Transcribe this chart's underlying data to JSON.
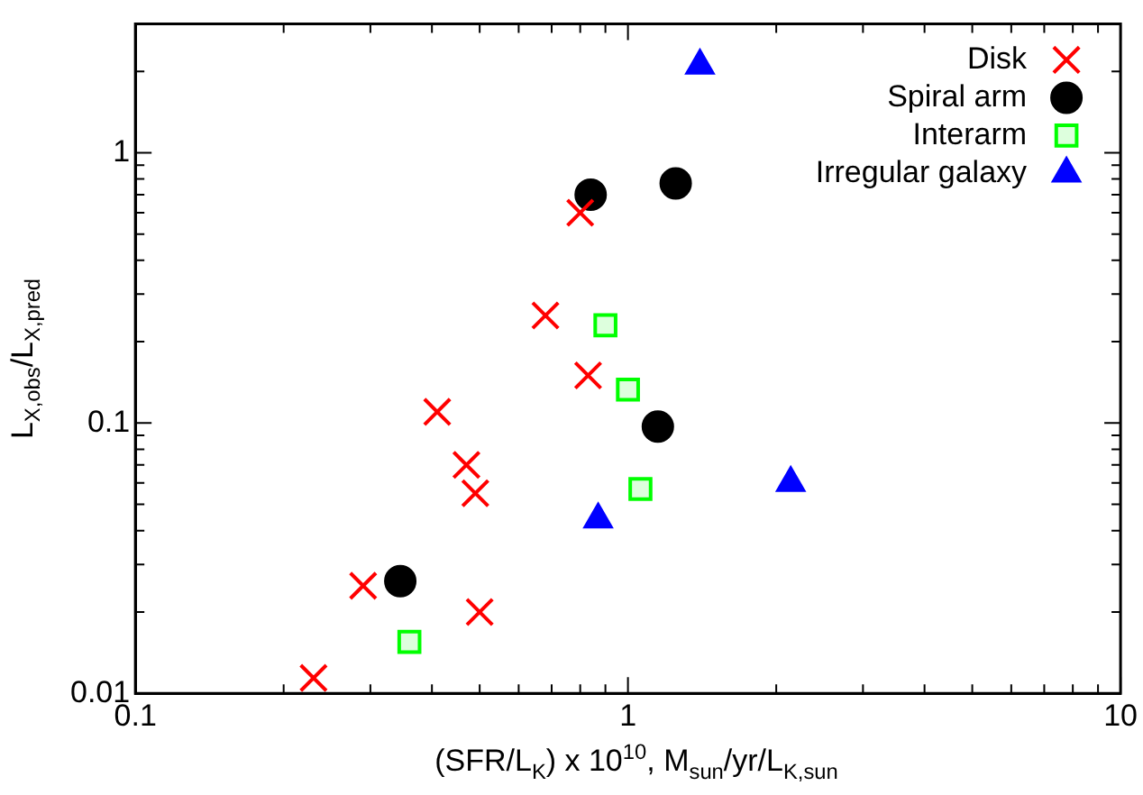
{
  "chart_data": {
    "type": "scatter",
    "xlabel": "(SFR/L$_{K}$) x 10$^{10}$, M$_{sun}$/yr/L$_{K,sun}$",
    "ylabel": "L$_{X,obs}$/L$_{X,pred}$",
    "log": "xy",
    "grid": false,
    "legend": "top right",
    "xlim": [
      0.1,
      10
    ],
    "ylim": [
      0.01,
      3
    ],
    "xticks": [
      0.1,
      {
        "value": 0.2,
        "label": null
      },
      {
        "value": 0.3,
        "label": null
      },
      {
        "value": 0.4,
        "label": null
      },
      {
        "value": 0.5,
        "label": null
      },
      {
        "value": 0.6,
        "label": null
      },
      {
        "value": 0.7,
        "label": null
      },
      {
        "value": 0.8,
        "label": null
      },
      {
        "value": 0.9,
        "label": null
      },
      1,
      {
        "value": 2,
        "label": null
      },
      {
        "value": 3,
        "label": null
      },
      {
        "value": 4,
        "label": null
      },
      {
        "value": 5,
        "label": null
      },
      {
        "value": 6,
        "label": null
      },
      {
        "value": 7,
        "label": null
      },
      {
        "value": 8,
        "label": null
      },
      {
        "value": 9,
        "label": null
      },
      10
    ],
    "yticks": [
      0.01,
      {
        "value": 0.02,
        "label": null
      },
      {
        "value": 0.03,
        "label": null
      },
      {
        "value": 0.04,
        "label": null
      },
      {
        "value": 0.05,
        "label": null
      },
      {
        "value": 0.06,
        "label": null
      },
      {
        "value": 0.07,
        "label": null
      },
      {
        "value": 0.08,
        "label": null
      },
      {
        "value": 0.09,
        "label": null
      },
      0.1,
      {
        "value": 0.2,
        "label": null
      },
      {
        "value": 0.3,
        "label": null
      },
      {
        "value": 0.4,
        "label": null
      },
      {
        "value": 0.5,
        "label": null
      },
      {
        "value": 0.6,
        "label": null
      },
      {
        "value": 0.7,
        "label": null
      },
      {
        "value": 0.8,
        "label": null
      },
      {
        "value": 0.9,
        "label": null
      },
      1,
      {
        "value": 2,
        "label": null
      }
    ],
    "series": [
      {
        "name": "Disk",
        "color": "#ff0000",
        "marker": "cross",
        "x": [
          0.8,
          0.68,
          0.83,
          0.41,
          0.47,
          0.49,
          0.29,
          0.5,
          0.23
        ],
        "values": [
          0.6,
          0.25,
          0.15,
          0.11,
          0.07,
          0.055,
          0.025,
          0.02,
          0.0114
        ]
      },
      {
        "name": "Spiral arm",
        "color": "#000000",
        "marker": "circle",
        "x": [
          0.84,
          1.25,
          1.15,
          0.345
        ],
        "values": [
          0.7,
          0.77,
          0.097,
          0.026
        ]
      },
      {
        "name": "Interarm",
        "color": "#00ff00",
        "marker": "square",
        "x": [
          0.9,
          1.0,
          1.06,
          0.36
        ],
        "values": [
          0.23,
          0.133,
          0.057,
          0.0155
        ]
      },
      {
        "name": "Irregular galaxy",
        "color": "#0000ff",
        "marker": "triangle",
        "x": [
          1.4,
          0.87,
          2.14
        ],
        "values": [
          2.1,
          0.044,
          0.06
        ]
      }
    ]
  }
}
